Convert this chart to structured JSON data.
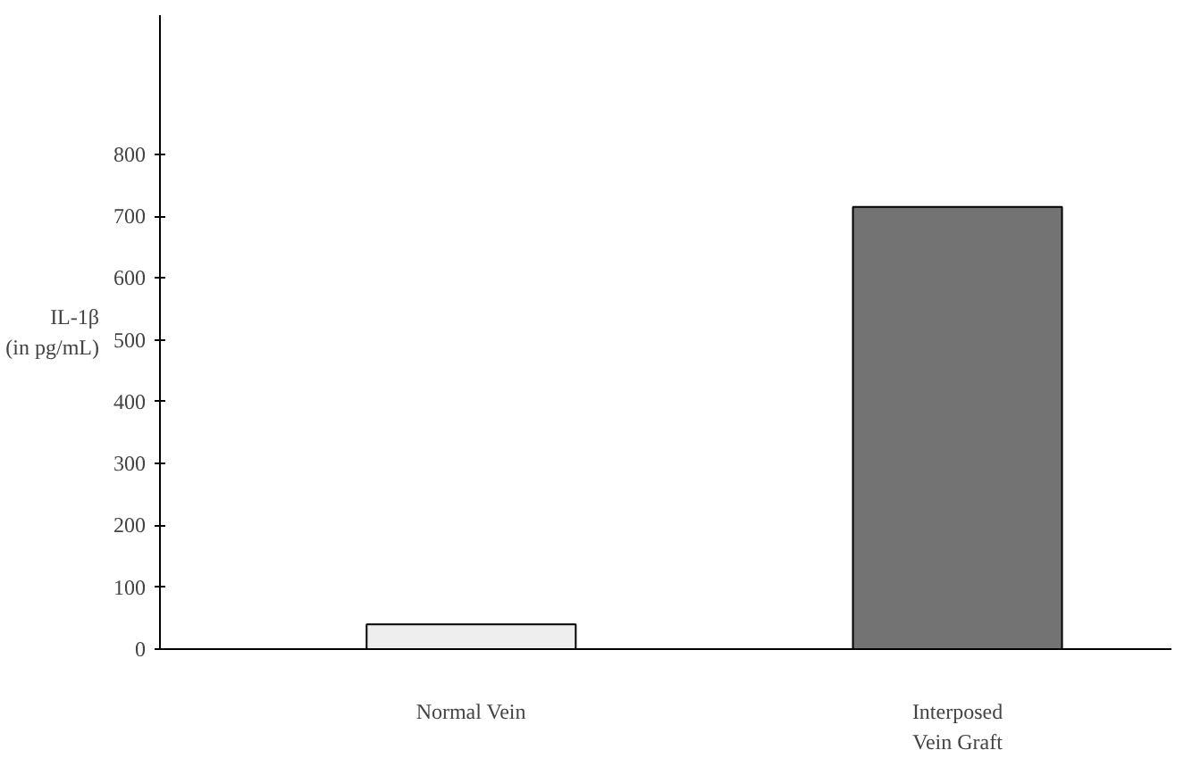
{
  "chart_data": {
    "type": "bar",
    "ylabel": "IL-1β\n(in pg/mL)",
    "categories": [
      "Normal Vein",
      "Interposed\nVein Graft"
    ],
    "values": [
      40,
      715
    ],
    "colors": [
      "#eeeeee",
      "#737373"
    ],
    "ylim": [
      0,
      1025
    ],
    "yticks": [
      0,
      100,
      200,
      300,
      400,
      500,
      600,
      700,
      800
    ],
    "grid": false
  }
}
